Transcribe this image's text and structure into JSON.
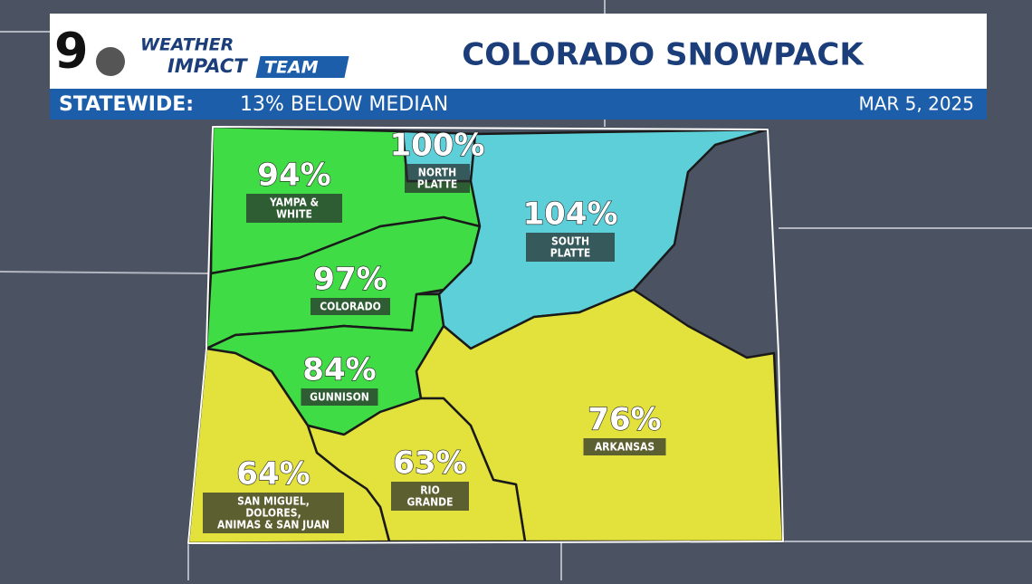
{
  "header": {
    "logo": {
      "channel": "9",
      "line1": "WEATHER",
      "line2": "IMPACT",
      "line3": "TEAM"
    },
    "title": "COLORADO SNOWPACK",
    "statewide_label": "STATEWIDE:",
    "statewide_value": "13% BELOW MEDIAN",
    "date": "MAR 5, 2025"
  },
  "regions": [
    {
      "percent": "94%",
      "name": [
        "YAMPA &",
        "WHITE"
      ]
    },
    {
      "percent": "100%",
      "name": [
        "NORTH",
        "PLATTE"
      ]
    },
    {
      "percent": "104%",
      "name": [
        "SOUTH",
        "PLATTE"
      ]
    },
    {
      "percent": "97%",
      "name": [
        "COLORADO"
      ]
    },
    {
      "percent": "84%",
      "name": [
        "GUNNISON"
      ]
    },
    {
      "percent": "76%",
      "name": [
        "ARKANSAS"
      ]
    },
    {
      "percent": "63%",
      "name": [
        "RIO",
        "GRANDE"
      ]
    },
    {
      "percent": "64%",
      "name": [
        "SAN MIGUEL,",
        "DOLORES,",
        "ANIMAS & SAN JUAN"
      ]
    }
  ]
}
